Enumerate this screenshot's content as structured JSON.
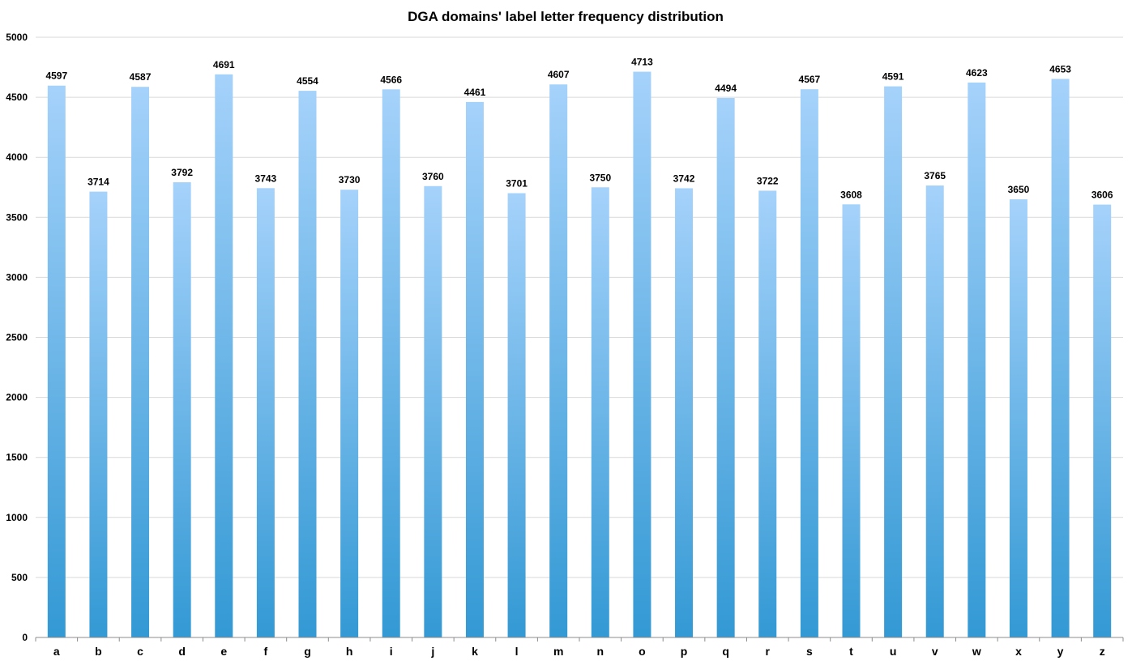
{
  "chart_data": {
    "type": "bar",
    "title": "DGA domains' label letter frequency distribution",
    "xlabel": "",
    "ylabel": "",
    "categories": [
      "a",
      "b",
      "c",
      "d",
      "e",
      "f",
      "g",
      "h",
      "i",
      "j",
      "k",
      "l",
      "m",
      "n",
      "o",
      "p",
      "q",
      "r",
      "s",
      "t",
      "u",
      "v",
      "w",
      "x",
      "y",
      "z"
    ],
    "values": [
      4597,
      3714,
      4587,
      3792,
      4691,
      3743,
      4554,
      3730,
      4566,
      3760,
      4461,
      3701,
      4607,
      3750,
      4713,
      3742,
      4494,
      3722,
      4567,
      3608,
      4591,
      3765,
      4623,
      3650,
      4653,
      3606
    ],
    "ylim": [
      0,
      5000
    ],
    "yticks": [
      0,
      500,
      1000,
      1500,
      2000,
      2500,
      3000,
      3500,
      4000,
      4500,
      5000
    ],
    "grid": true,
    "legend": "none",
    "colors": {
      "bar_top": "#a5d2fb",
      "bar_bottom": "#3399d4",
      "grid": "#d9d9d9"
    }
  }
}
